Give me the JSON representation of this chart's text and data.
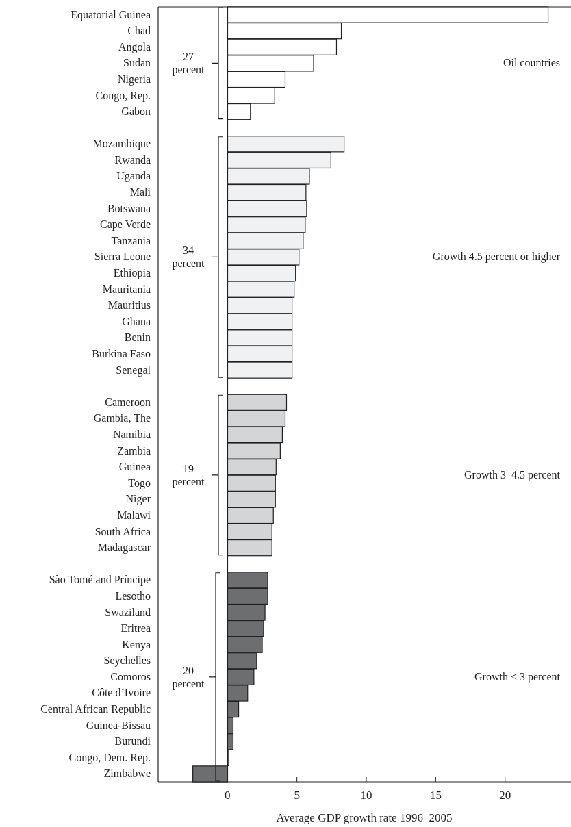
{
  "chart_data": {
    "type": "bar",
    "orientation": "horizontal",
    "xlabel": "Average GDP growth rate 1996–2005",
    "categories": [
      "Equatorial Guinea",
      "Chad",
      "Angola",
      "Sudan",
      "Nigeria",
      "Congo, Rep.",
      "Gabon",
      null,
      "Mozambique",
      "Rwanda",
      "Uganda",
      "Mali",
      "Botswana",
      "Cape Verde",
      "Tanzania",
      "Sierra Leone",
      "Ethiopia",
      "Mauritania",
      "Mauritius",
      "Ghana",
      "Benin",
      "Burkina Faso",
      "Senegal",
      null,
      "Cameroon",
      "Gambia, The",
      "Namibia",
      "Zambia",
      "Guinea",
      "Togo",
      "Niger",
      "Malawi",
      "South Africa",
      "Madagascar",
      null,
      "São Tomé and Príncipe",
      "Lesotho",
      "Swaziland",
      "Eritrea",
      "Kenya",
      "Seychelles",
      "Comoros",
      "Côte d’Ivoire",
      "Central African Republic",
      "Guinea-Bissau",
      "Burundi",
      "Congo, Dem. Rep.",
      "Zimbabwe"
    ],
    "values": [
      23.1,
      8.2,
      7.85,
      6.2,
      4.15,
      3.4,
      1.65,
      null,
      8.4,
      7.45,
      5.9,
      5.65,
      5.7,
      5.6,
      5.45,
      5.15,
      4.9,
      4.8,
      4.65,
      4.65,
      4.65,
      4.65,
      4.65,
      null,
      4.25,
      4.15,
      3.95,
      3.8,
      3.5,
      3.45,
      3.45,
      3.3,
      3.2,
      3.2,
      null,
      2.9,
      2.9,
      2.7,
      2.6,
      2.5,
      2.1,
      1.9,
      1.45,
      0.8,
      0.4,
      0.4,
      0.1,
      -2.5
    ],
    "colors": [
      "#ffffff",
      "#ffffff",
      "#ffffff",
      "#ffffff",
      "#ffffff",
      "#ffffff",
      "#ffffff",
      null,
      "#f0f1f2",
      "#f0f1f2",
      "#f0f1f2",
      "#f0f1f2",
      "#f0f1f2",
      "#f0f1f2",
      "#f0f1f2",
      "#f0f1f2",
      "#f0f1f2",
      "#f0f1f2",
      "#f0f1f2",
      "#f0f1f2",
      "#f0f1f2",
      "#f0f1f2",
      "#f0f1f2",
      null,
      "#d4d5d6",
      "#d4d5d6",
      "#d4d5d6",
      "#d4d5d6",
      "#d4d5d6",
      "#d4d5d6",
      "#d4d5d6",
      "#d4d5d6",
      "#d4d5d6",
      "#d4d5d6",
      null,
      "#6d6e70",
      "#6d6e70",
      "#6d6e70",
      "#6d6e70",
      "#6d6e70",
      "#6d6e70",
      "#6d6e70",
      "#6d6e70",
      "#6d6e70",
      "#6d6e70",
      "#6d6e70",
      "#6d6e70",
      "#6d6e70"
    ],
    "xlim": [
      -5,
      24.7
    ],
    "xticks": [
      0,
      5,
      10,
      15,
      20
    ],
    "annotations": [
      "Oil countries",
      "27 percent",
      "Growth 4.5 percent or higher",
      "34 percent",
      "Growth 3–4.5 percent",
      "19 percent",
      "Growth < 3 percent",
      "20 percent"
    ]
  }
}
